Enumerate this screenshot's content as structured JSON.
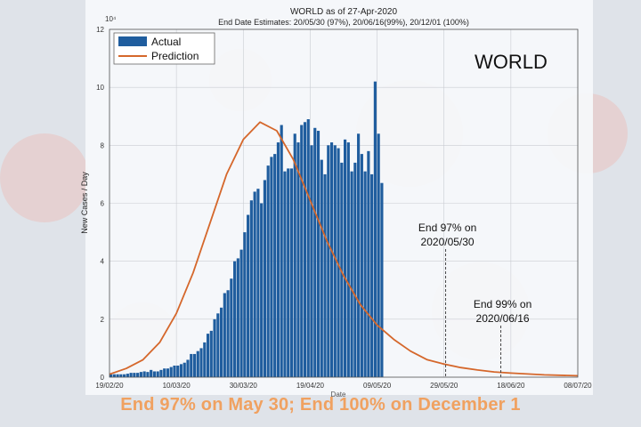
{
  "caption": "End 97% on May 30; End 100% on December 1",
  "chart_data": {
    "type": "bar",
    "title": "WORLD as of 27-Apr-2020",
    "subtitle": "End Date Estimates: 20/05/30 (97%), 20/06/16(99%), 20/12/01 (100%)",
    "panel_label": "WORLD",
    "xlabel": "Date",
    "ylabel": "New Cases / Day",
    "y_exponent": "10⁴",
    "ylim": [
      0,
      12
    ],
    "y_ticks": [
      "0",
      "2",
      "4",
      "6",
      "8",
      "10",
      "12"
    ],
    "x_ticks": [
      "19/02/20",
      "10/03/20",
      "30/03/20",
      "19/04/20",
      "09/05/20",
      "29/05/20",
      "18/06/20",
      "08/07/20"
    ],
    "legend": {
      "placement": "top-left",
      "items": [
        "Actual",
        "Prediction"
      ]
    },
    "grid": true,
    "series": [
      {
        "name": "Actual",
        "color": "#1f5d9e",
        "values": [
          0.1,
          0.1,
          0.1,
          0.1,
          0.1,
          0.12,
          0.15,
          0.15,
          0.15,
          0.18,
          0.2,
          0.18,
          0.25,
          0.2,
          0.2,
          0.25,
          0.3,
          0.3,
          0.35,
          0.4,
          0.4,
          0.45,
          0.5,
          0.6,
          0.8,
          0.8,
          0.9,
          1.0,
          1.2,
          1.5,
          1.6,
          2.0,
          2.2,
          2.4,
          2.9,
          3.0,
          3.4,
          4.0,
          4.1,
          4.4,
          5.0,
          5.6,
          6.1,
          6.4,
          6.5,
          6.0,
          6.8,
          7.3,
          7.6,
          7.7,
          8.1,
          8.7,
          7.1,
          7.2,
          7.2,
          8.4,
          8.1,
          8.7,
          8.8,
          8.9,
          8.0,
          8.6,
          8.5,
          7.5,
          7.0,
          8.0,
          8.1,
          8.0,
          7.9,
          7.4,
          8.2,
          8.1,
          7.1,
          7.4,
          8.4,
          7.7,
          7.1,
          7.8,
          7.0,
          10.2,
          8.4,
          6.7
        ]
      },
      {
        "name": "Prediction",
        "color": "#d5672b",
        "x": [
          0,
          5,
          10,
          15,
          20,
          25,
          30,
          35,
          40,
          45,
          50,
          55,
          60,
          65,
          70,
          75,
          80,
          85,
          90,
          95,
          100,
          105,
          110,
          115,
          120,
          130,
          140
        ],
        "values": [
          0.1,
          0.3,
          0.6,
          1.2,
          2.2,
          3.6,
          5.3,
          7.0,
          8.2,
          8.8,
          8.5,
          7.5,
          6.1,
          4.7,
          3.5,
          2.5,
          1.8,
          1.3,
          0.9,
          0.6,
          0.45,
          0.33,
          0.25,
          0.18,
          0.14,
          0.08,
          0.05
        ]
      }
    ],
    "annotations": [
      {
        "text_line1": "End 97% on",
        "text_line2": "2020/05/30",
        "day": 100.5
      },
      {
        "text_line1": "End 99% on",
        "text_line2": "2020/06/16",
        "day": 117
      }
    ]
  }
}
